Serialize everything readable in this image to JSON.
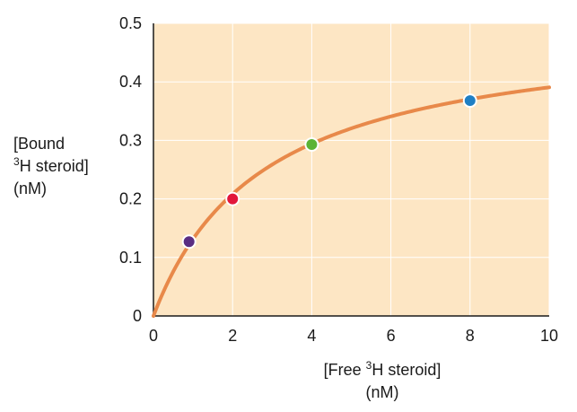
{
  "chart_data": {
    "type": "scatter",
    "xlabel": {
      "prefix": "[Free ",
      "sup": "3",
      "suffix": "H steroid]",
      "line2": "(nM)"
    },
    "ylabel": {
      "line1": "[Bound",
      "sup": "3",
      "line2_suffix": "H steroid]",
      "line3": "(nM)"
    },
    "xlim": [
      0,
      10
    ],
    "ylim": [
      0,
      0.5
    ],
    "x_ticks": [
      "0",
      "2",
      "4",
      "6",
      "8",
      "10"
    ],
    "y_ticks": [
      "0",
      "0.1",
      "0.2",
      "0.3",
      "0.4",
      "0.5"
    ],
    "grid": true,
    "background_color": "#fde6c4",
    "grid_color": "#ffffff",
    "curve": {
      "model": "saturation binding",
      "bmax": 0.5,
      "kd": 2.8,
      "x_range": [
        0,
        10
      ],
      "color": "#e8894a"
    },
    "points": [
      {
        "x": 0.9,
        "y": 0.127,
        "color": "#5a2d82"
      },
      {
        "x": 2.0,
        "y": 0.2,
        "color": "#e2173b"
      },
      {
        "x": 4.0,
        "y": 0.293,
        "color": "#5cb335"
      },
      {
        "x": 8.0,
        "y": 0.368,
        "color": "#1f7fc4"
      }
    ]
  }
}
